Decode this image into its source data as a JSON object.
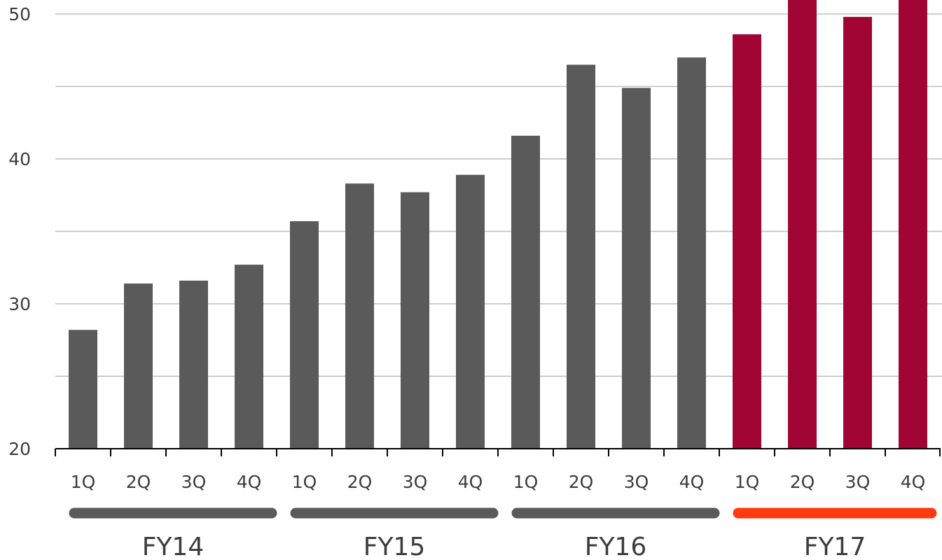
{
  "chart_data": {
    "type": "bar",
    "title": "",
    "xlabel": "",
    "ylabel": "",
    "ylim": [
      20,
      51
    ],
    "yticks": [
      20,
      30,
      40,
      50
    ],
    "grid": true,
    "legend": "none",
    "categories": [
      "1Q",
      "2Q",
      "3Q",
      "4Q",
      "1Q",
      "2Q",
      "3Q",
      "4Q",
      "1Q",
      "2Q",
      "3Q",
      "4Q",
      "1Q",
      "2Q",
      "3Q",
      "4Q"
    ],
    "groups": [
      {
        "label": "FY14",
        "start": 0,
        "end": 3,
        "color": "#5a5a5a"
      },
      {
        "label": "FY15",
        "start": 4,
        "end": 7,
        "color": "#5a5a5a"
      },
      {
        "label": "FY16",
        "start": 8,
        "end": 11,
        "color": "#5a5a5a"
      },
      {
        "label": "FY17",
        "start": 12,
        "end": 15,
        "color": "#ff3a10"
      }
    ],
    "values": [
      28.2,
      31.4,
      31.6,
      32.7,
      35.7,
      38.3,
      37.7,
      38.9,
      41.6,
      46.5,
      44.9,
      47.0,
      48.6,
      51.0,
      49.8,
      51.0
    ],
    "bar_colors": [
      "#5a5a5a",
      "#5a5a5a",
      "#5a5a5a",
      "#5a5a5a",
      "#5a5a5a",
      "#5a5a5a",
      "#5a5a5a",
      "#5a5a5a",
      "#5a5a5a",
      "#5a5a5a",
      "#5a5a5a",
      "#5a5a5a",
      "#a00534",
      "#a00534",
      "#a00534",
      "#a00534"
    ]
  }
}
